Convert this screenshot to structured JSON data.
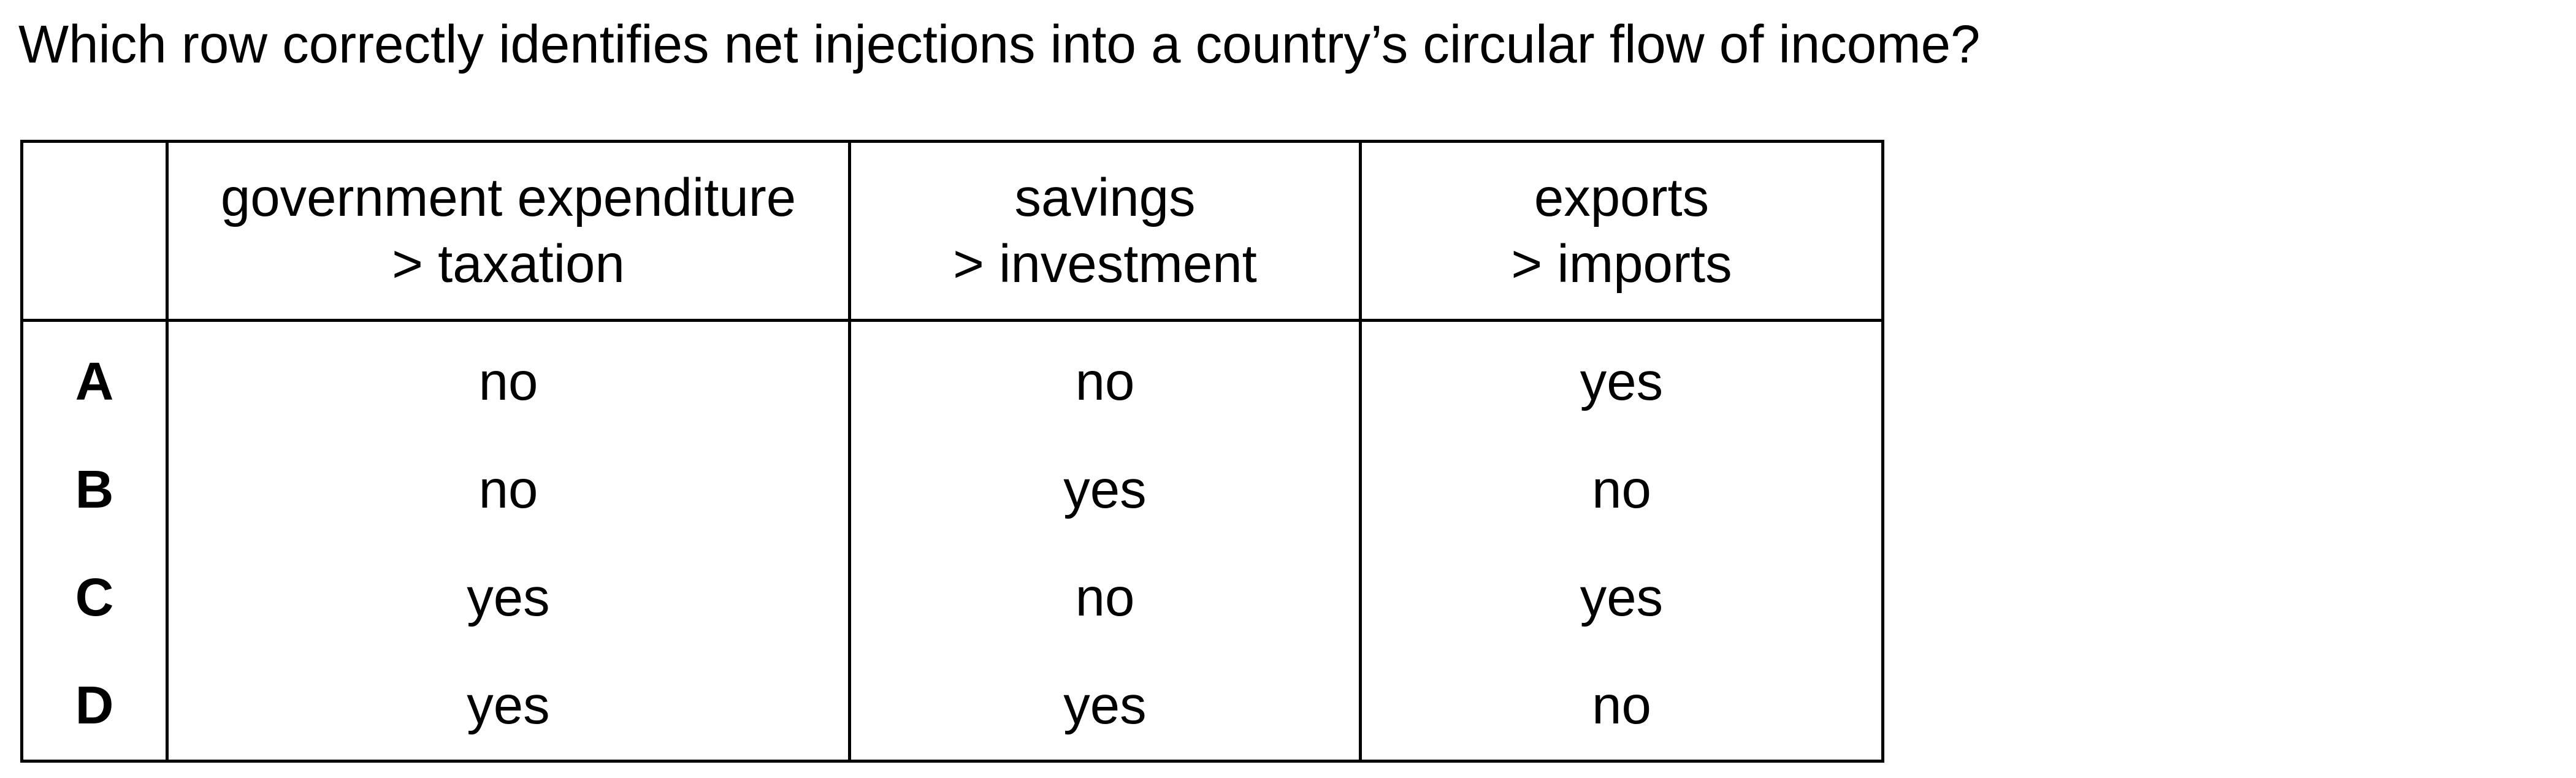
{
  "question": "Which row correctly identifies net injections into a country’s circular flow of income?",
  "table": {
    "headers": [
      {
        "line1": "",
        "line2": ""
      },
      {
        "line1": "government expenditure",
        "line2": "> taxation"
      },
      {
        "line1": "savings",
        "line2": "> investment"
      },
      {
        "line1": "exports",
        "line2": "> imports"
      }
    ],
    "rows": [
      {
        "key": "A",
        "values": [
          "no",
          "no",
          "yes"
        ]
      },
      {
        "key": "B",
        "values": [
          "no",
          "yes",
          "no"
        ]
      },
      {
        "key": "C",
        "values": [
          "yes",
          "no",
          "yes"
        ]
      },
      {
        "key": "D",
        "values": [
          "yes",
          "yes",
          "no"
        ]
      }
    ]
  }
}
